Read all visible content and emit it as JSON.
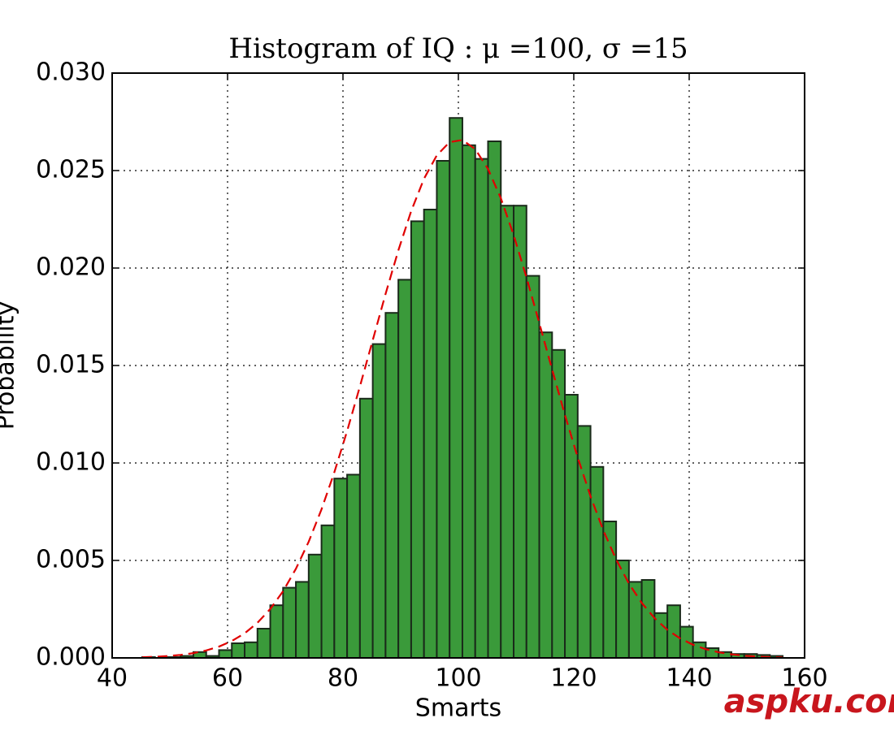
{
  "chart_data": {
    "type": "histogram",
    "title": "Histogram of IQ : μ =100, σ =15",
    "xlabel": "Smarts",
    "ylabel": "Probability",
    "bins": [
      45.2,
      47.42,
      49.64,
      51.86,
      54.08,
      56.3,
      58.52,
      60.74,
      62.96,
      65.18,
      67.4,
      69.62,
      71.84,
      74.06,
      76.28,
      78.5,
      80.72,
      82.94,
      85.16,
      87.38,
      89.6,
      91.82,
      94.04,
      96.26,
      98.48,
      100.7,
      102.92,
      105.14,
      107.36,
      109.58,
      111.8,
      114.02,
      116.24,
      118.46,
      120.68,
      122.9,
      125.12,
      127.34,
      129.56,
      131.78,
      134.0,
      136.22,
      138.44,
      140.66,
      142.88,
      145.1,
      147.32,
      149.54,
      151.76,
      153.98,
      156.2
    ],
    "values": [
      4e-05,
      0.0,
      4e-05,
      0.0001,
      0.0003,
      0.0001,
      0.0004,
      0.00075,
      0.0008,
      0.0015,
      0.0027,
      0.0036,
      0.0039,
      0.0053,
      0.0068,
      0.0092,
      0.0094,
      0.0133,
      0.0161,
      0.0177,
      0.0194,
      0.0224,
      0.023,
      0.0255,
      0.0277,
      0.0263,
      0.0256,
      0.0265,
      0.0232,
      0.0232,
      0.0196,
      0.0167,
      0.0158,
      0.0135,
      0.0119,
      0.0098,
      0.007,
      0.005,
      0.0039,
      0.004,
      0.0023,
      0.0027,
      0.0016,
      0.0008,
      0.0005,
      0.0003,
      0.0002,
      0.0002,
      0.00015,
      0.0001
    ],
    "color": "#3a9a3a",
    "edgecolor": "#1a2a1a",
    "line": {
      "color": "#e00000",
      "style": "dashed",
      "x": [
        45.2,
        47.42,
        49.64,
        51.86,
        54.08,
        56.3,
        58.52,
        60.74,
        62.96,
        65.18,
        67.4,
        69.62,
        71.84,
        74.06,
        76.28,
        78.5,
        80.72,
        82.94,
        85.16,
        87.38,
        89.6,
        91.82,
        94.04,
        96.26,
        98.48,
        100.7,
        102.92,
        105.14,
        107.36,
        109.58,
        111.8,
        114.02,
        116.24,
        118.46,
        120.68,
        122.9,
        125.12,
        127.34,
        129.56,
        131.78,
        134.0,
        136.22,
        138.44,
        140.66,
        142.88,
        145.1,
        147.32,
        149.54,
        151.76,
        153.98,
        156.2
      ],
      "values": [
        3.36e-05,
        5.71e-05,
        9.49e-05,
        0.000154,
        0.000245,
        0.000382,
        0.000582,
        0.000866,
        0.00126,
        0.0018,
        0.00251,
        0.00342,
        0.00457,
        0.00596,
        0.00762,
        0.00952,
        0.01164,
        0.01393,
        0.0163,
        0.01867,
        0.02091,
        0.02292,
        0.02458,
        0.02578,
        0.02646,
        0.02657,
        0.0261,
        0.02508,
        0.02358,
        0.02169,
        0.01952,
        0.01718,
        0.0148,
        0.01247,
        0.01028,
        0.00829,
        0.00654,
        0.00505,
        0.00381,
        0.00282,
        0.00204,
        0.00144,
        0.000997,
        0.000675,
        0.000447,
        0.00029,
        0.000184,
        0.000114,
        6.9e-05,
        4.1e-05,
        2.38e-05
      ]
    },
    "xlim": [
      40,
      160
    ],
    "xticks": [
      40,
      60,
      80,
      100,
      120,
      140,
      160
    ],
    "ylim": [
      0,
      0.03
    ],
    "yticks": [
      {
        "value": 0,
        "label": "0.000"
      },
      {
        "value": 0.005,
        "label": "0.005"
      },
      {
        "value": 0.01,
        "label": "0.010"
      },
      {
        "value": 0.015,
        "label": "0.015"
      },
      {
        "value": 0.02,
        "label": "0.020"
      },
      {
        "value": 0.025,
        "label": "0.025"
      },
      {
        "value": 0.03,
        "label": "0.030"
      }
    ],
    "grid": true,
    "watermark": "aspku.com"
  }
}
